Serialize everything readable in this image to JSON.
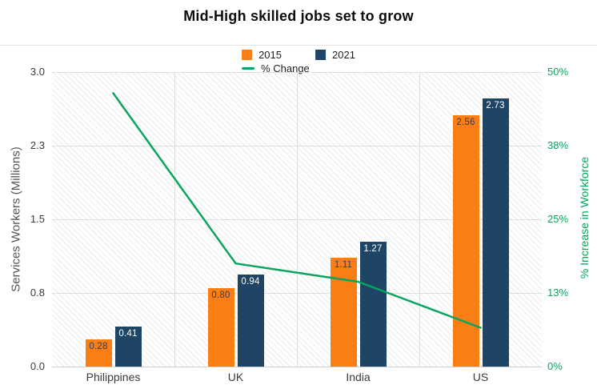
{
  "figure": {
    "title": "Mid-High skilled jobs set to grow",
    "legend": {
      "items": [
        {
          "label": "2015",
          "marker": "square",
          "color": "#fb7e14"
        },
        {
          "label": "2021",
          "marker": "square",
          "color": "#1f4566"
        },
        {
          "label": "% Change",
          "marker": "line",
          "color": "#09a45e"
        }
      ]
    }
  },
  "chart_data": {
    "type": "bar",
    "subtype": "grouped bars with overlaid line on secondary axis",
    "title": "Mid-High skilled jobs set to grow",
    "categories": [
      "Philippines",
      "UK",
      "India",
      "US"
    ],
    "series": [
      {
        "name": "2015",
        "type": "bar",
        "axis": "left",
        "color": "#fb7e14",
        "values": [
          0.28,
          0.8,
          1.11,
          2.56
        ],
        "labels": [
          "0.28",
          "0.80",
          "1.11",
          "2.56"
        ]
      },
      {
        "name": "2021",
        "type": "bar",
        "axis": "left",
        "color": "#1f4566",
        "values": [
          0.41,
          0.94,
          1.27,
          2.73
        ],
        "labels": [
          "0.41",
          "0.94",
          "1.27",
          "2.73"
        ]
      },
      {
        "name": "% Change",
        "type": "line",
        "axis": "right",
        "color": "#09a45e",
        "values": [
          46.4,
          17.5,
          14.4,
          6.6
        ]
      }
    ],
    "y_left": {
      "label": "Services Workers (Millions)",
      "ticks": [
        "0.0",
        "0.8",
        "1.5",
        "2.3",
        "3.0"
      ],
      "range": [
        0,
        3.0
      ]
    },
    "y_right": {
      "label": "% Increase in Workforce",
      "ticks": [
        "0%",
        "13%",
        "25%",
        "38%",
        "50%"
      ],
      "range": [
        0,
        50
      ],
      "color": "#09a45e"
    },
    "grid": true,
    "legend_position": "top-center",
    "plot_background": "white with light diagonal hatch"
  }
}
